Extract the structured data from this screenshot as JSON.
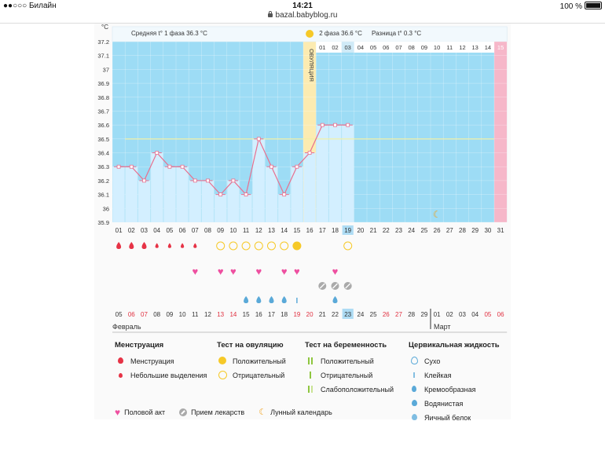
{
  "status": {
    "carrier": "●●○○○ Билайн",
    "time": "14:21",
    "battery": "100 %",
    "url": "bazal.babyblog.ru"
  },
  "chart_data": {
    "type": "line",
    "title": "",
    "ylabel": "°C",
    "ylim": [
      35.9,
      37.2
    ],
    "yticks": [
      "37.2",
      "37.1",
      "37",
      "36.9",
      "36.8",
      "36.7",
      "36.6",
      "36.5",
      "36.4",
      "36.3",
      "36.2",
      "36.1",
      "36",
      "35.9"
    ],
    "header": {
      "phase1": "Средняя t° 1 фаза 36.3 °C",
      "phase2": "2 фаза 36.6 °C",
      "diff": "Разница t° 0.3 °C",
      "ovulation": "ОВУЛЯЦИЯ"
    },
    "cycle_days": [
      "01",
      "02",
      "03",
      "04",
      "05",
      "06",
      "07",
      "08",
      "09",
      "10",
      "11",
      "12",
      "13",
      "14",
      "15",
      "16",
      "17",
      "18",
      "19",
      "20",
      "21",
      "22",
      "23",
      "24",
      "25",
      "26",
      "27",
      "28",
      "29",
      "30",
      "31"
    ],
    "header_days": [
      "01",
      "02",
      "03",
      "04",
      "05",
      "06",
      "07",
      "08",
      "09",
      "10",
      "11",
      "12",
      "13",
      "14",
      "15"
    ],
    "values": [
      36.3,
      36.3,
      36.2,
      36.4,
      36.3,
      36.3,
      36.2,
      36.2,
      36.1,
      36.2,
      36.1,
      36.5,
      36.3,
      36.1,
      36.3,
      36.4,
      36.6,
      36.6,
      36.6
    ],
    "coverline": 36.5,
    "calendar_dates": [
      "05",
      "06",
      "07",
      "08",
      "09",
      "10",
      "11",
      "12",
      "13",
      "14",
      "15",
      "16",
      "17",
      "18",
      "19",
      "20",
      "21",
      "22",
      "23",
      "24",
      "25",
      "26",
      "27",
      "28",
      "29",
      "01",
      "02",
      "03",
      "04",
      "05",
      "06"
    ],
    "month_feb": "Февраль",
    "month_mar": "Март",
    "highlight_day": "19",
    "highlight_date": "23"
  },
  "legend": {
    "menstruation": {
      "title": "Менструация",
      "items": [
        "Менструация",
        "Небольшие выделения"
      ]
    },
    "ovulation_test": {
      "title": "Тест на овуляцию",
      "items": [
        "Положительный",
        "Отрицательный"
      ]
    },
    "pregnancy_test": {
      "title": "Тест на беременность",
      "items": [
        "Положительный",
        "Отрицательный",
        "Слабоположительный"
      ]
    },
    "cervical": {
      "title": "Цервикальная жидкость",
      "items": [
        "Сухо",
        "Клейкая",
        "Кремообразная",
        "Водянистая",
        "Яичный белок"
      ]
    },
    "bottom": [
      "Половой акт",
      "Прием лекарств",
      "Лунный календарь"
    ]
  },
  "colors": {
    "sky": "#9ddcf5",
    "bar": "#d3efff",
    "line": "#e8708f",
    "ovulation": "#fcebb1",
    "pink": "#f6b7c9",
    "red": "#e63346",
    "heart": "#ee4fa0",
    "yellow": "#f6c928",
    "blue": "#5aa9d8"
  }
}
